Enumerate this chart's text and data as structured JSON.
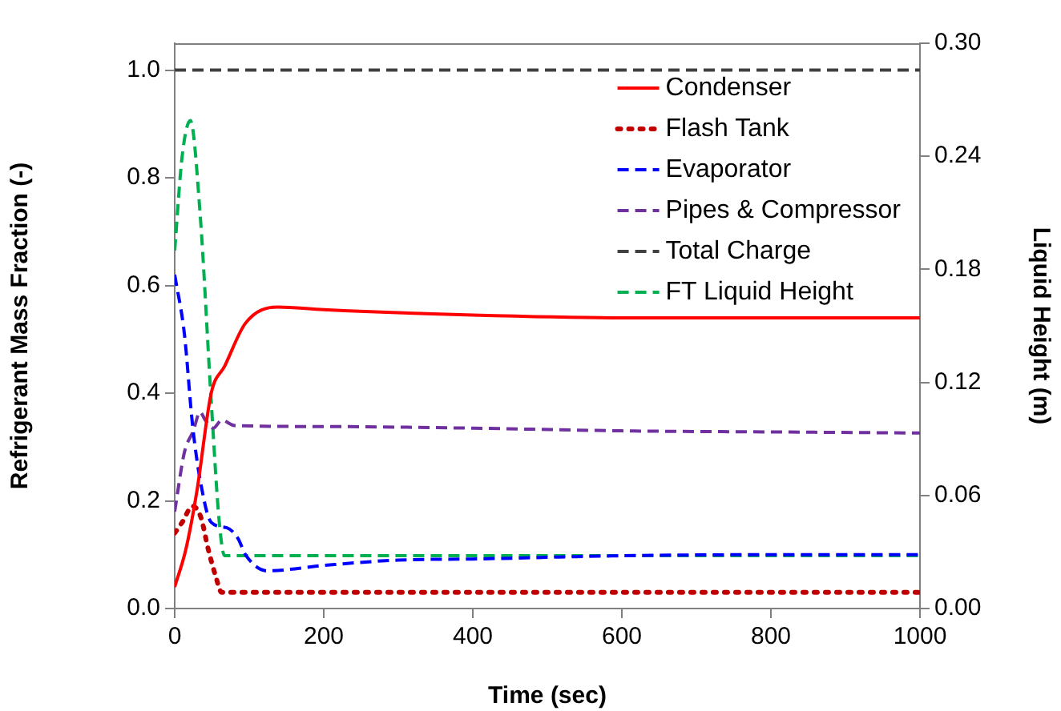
{
  "chart_data": {
    "type": "line",
    "xlabel": "Time (sec)",
    "ylabel": "Refrigerant Mass Fraction (-)",
    "y2label": "Liquid Height (m)",
    "xlim": [
      0,
      1000
    ],
    "xticks": [
      0,
      200,
      400,
      600,
      800,
      1000
    ],
    "ylim": [
      0,
      1.05
    ],
    "yticks": [
      {
        "value": 0,
        "label": "0.0"
      },
      0.2,
      0.4,
      0.6,
      0.8,
      {
        "value": 1,
        "label": "1.0"
      }
    ],
    "y2lim": [
      0,
      0.3
    ],
    "y2ticks": [
      {
        "value": 0,
        "label": "0.00"
      },
      0.06,
      0.12,
      0.18,
      0.24,
      {
        "value": 0.3,
        "label": "0.30"
      }
    ],
    "grid": false,
    "legend": "top right",
    "marker": "none",
    "series": [
      {
        "name": "Condenser",
        "color": "#ff0000",
        "line_style": "solid",
        "x": [
          0,
          15,
          30,
          49,
          67,
          95,
          138,
          200,
          400,
          600,
          800,
          1000
        ],
        "values": [
          0.04,
          0.11,
          0.22,
          0.4,
          0.45,
          0.53,
          0.56,
          0.555,
          0.545,
          0.54,
          0.54,
          0.54
        ]
      },
      {
        "name": "Flash Tank",
        "color": "#c00000",
        "line_style": "dotted",
        "x": [
          0,
          10,
          24,
          35,
          45,
          55,
          63,
          80,
          200,
          400,
          600,
          800,
          1000
        ],
        "values": [
          0.14,
          0.16,
          0.19,
          0.17,
          0.11,
          0.06,
          0.03,
          0.03,
          0.03,
          0.03,
          0.03,
          0.03,
          0.03
        ]
      },
      {
        "name": "Evaporator",
        "color": "#0000ff",
        "line_style": "dashed",
        "x": [
          0,
          13,
          24,
          34,
          49,
          70,
          85,
          95,
          124,
          200,
          300,
          400,
          600,
          800,
          1000
        ],
        "values": [
          0.62,
          0.51,
          0.34,
          0.24,
          0.16,
          0.15,
          0.13,
          0.1,
          0.07,
          0.08,
          0.09,
          0.092,
          0.098,
          0.1,
          0.1
        ]
      },
      {
        "name": "Pipes & Compressor",
        "color": "#7030a0",
        "line_style": "dashed",
        "x": [
          0,
          13,
          25,
          34,
          41,
          52,
          63,
          80,
          200,
          400,
          600,
          800,
          1000
        ],
        "values": [
          0.18,
          0.29,
          0.33,
          0.365,
          0.35,
          0.335,
          0.35,
          0.34,
          0.338,
          0.335,
          0.33,
          0.328,
          0.326
        ]
      },
      {
        "name": "Total Charge",
        "color": "#404040",
        "line_style": "dashed",
        "x": [
          0,
          1000
        ],
        "values": [
          1.0,
          1.0
        ]
      },
      {
        "name": "FT Liquid Height",
        "color": "#00b050",
        "line_style": "dashed",
        "axis": "y2",
        "x": [
          0,
          10,
          21,
          34,
          49,
          60,
          67,
          100,
          400,
          600,
          800,
          1000
        ],
        "values": [
          0.19,
          0.24,
          0.259,
          0.21,
          0.11,
          0.045,
          0.028,
          0.028,
          0.028,
          0.028,
          0.028,
          0.028
        ]
      }
    ]
  }
}
